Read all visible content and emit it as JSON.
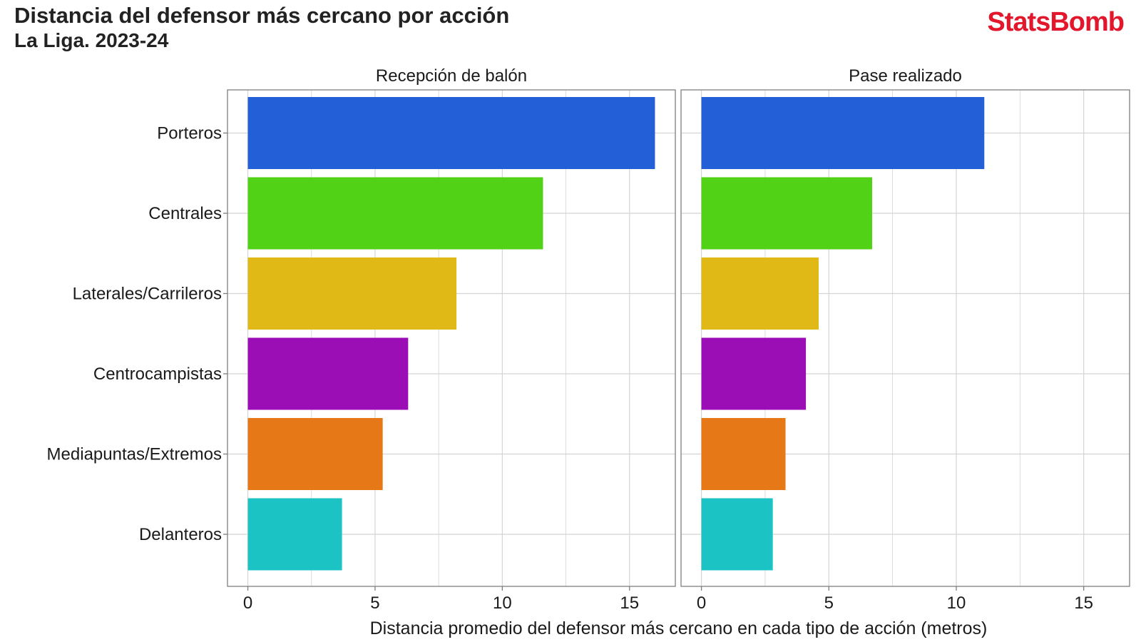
{
  "header": {
    "title": "Distancia del defensor más cercano por acción",
    "subtitle": "La Liga. 2023-24",
    "logo_text": "StatsBomb"
  },
  "colors": {
    "brand": "#e3172b",
    "Porteros": "#2360d8",
    "Centrales": "#52d216",
    "Laterales/Carrileros": "#e0b917",
    "Centrocampistas": "#9b0db5",
    "Mediapuntas/Extremos": "#e77817",
    "Delanteros": "#1bc3c4",
    "grid": "#d4d4d4",
    "panel_border": "#7f7f7f"
  },
  "chart_data": {
    "type": "bar",
    "orientation": "horizontal",
    "categories": [
      "Porteros",
      "Centrales",
      "Laterales/Carrileros",
      "Centrocampistas",
      "Mediapuntas/Extremos",
      "Delanteros"
    ],
    "facets": [
      {
        "title": "Recepción de balón",
        "values": [
          16.0,
          11.6,
          8.2,
          6.3,
          5.3,
          3.7
        ]
      },
      {
        "title": "Pase realizado",
        "values": [
          11.1,
          6.7,
          4.6,
          4.1,
          3.3,
          2.8
        ]
      }
    ],
    "xlabel": "Distancia promedio del defensor más cercano en cada tipo de acción (metros)",
    "xlim": [
      -0.8,
      16.8
    ],
    "xticks": [
      0,
      5,
      10,
      15
    ],
    "grid": true
  }
}
